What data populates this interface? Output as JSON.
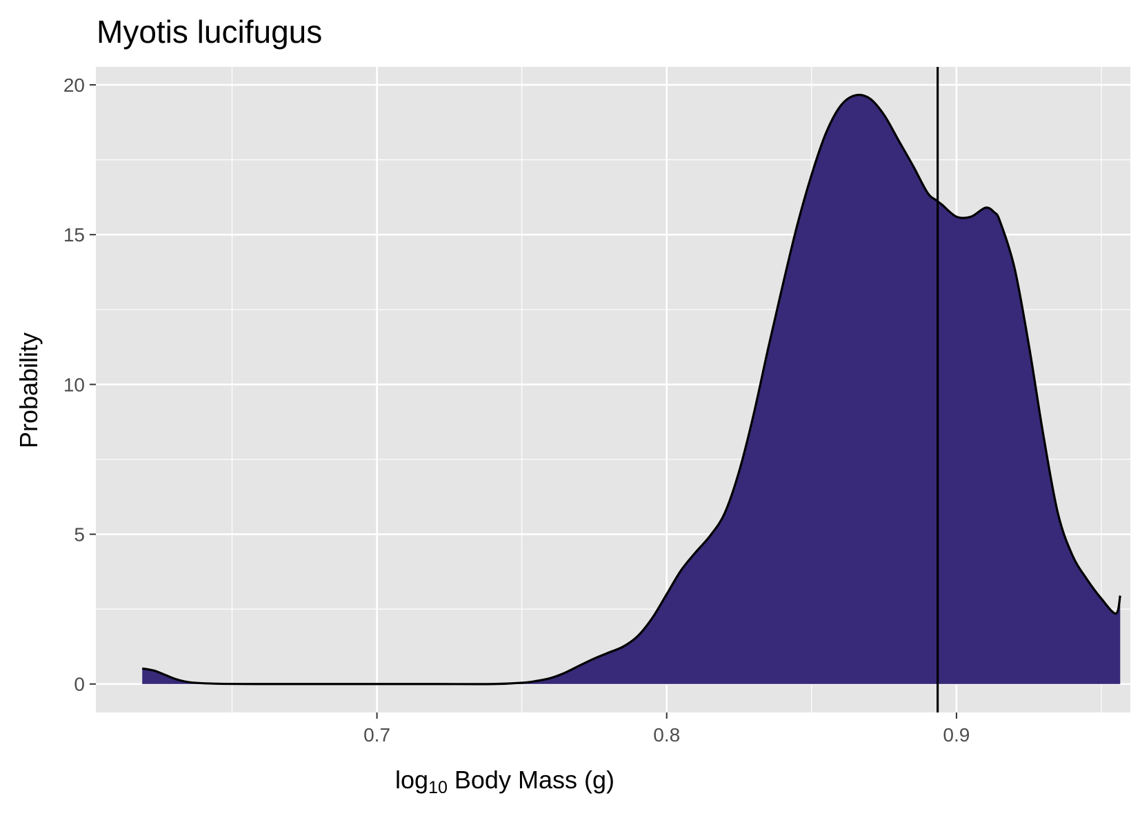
{
  "chart_data": {
    "type": "area",
    "title": "Myotis lucifugus",
    "xlabel_base": "log",
    "xlabel_sub": "10",
    "xlabel_rest": " Body Mass (g)",
    "ylabel": "Probability",
    "xlim": [
      0.603,
      0.96
    ],
    "ylim": [
      -0.95,
      20.6
    ],
    "x_ticks": [
      0.7,
      0.8,
      0.9
    ],
    "x_tick_labels": [
      "0.7",
      "0.8",
      "0.9"
    ],
    "y_ticks": [
      0,
      5,
      10,
      15,
      20
    ],
    "y_tick_labels": [
      "0",
      "5",
      "10",
      "15",
      "20"
    ],
    "grid": true,
    "fill_color": "#382a78",
    "line_color": "#000000",
    "panel_color": "#e5e5e5",
    "vline_x": 0.8935,
    "density": {
      "x": [
        0.619,
        0.623,
        0.627,
        0.631,
        0.636,
        0.645,
        0.66,
        0.68,
        0.7,
        0.72,
        0.74,
        0.75,
        0.755,
        0.76,
        0.765,
        0.77,
        0.775,
        0.78,
        0.785,
        0.79,
        0.795,
        0.8,
        0.805,
        0.81,
        0.815,
        0.82,
        0.825,
        0.83,
        0.835,
        0.84,
        0.845,
        0.85,
        0.855,
        0.86,
        0.865,
        0.87,
        0.875,
        0.88,
        0.885,
        0.89,
        0.893,
        0.895,
        0.9,
        0.905,
        0.91,
        0.913,
        0.915,
        0.92,
        0.925,
        0.93,
        0.935,
        0.94,
        0.945,
        0.95,
        0.955,
        0.9565
      ],
      "y": [
        0.52,
        0.45,
        0.3,
        0.15,
        0.05,
        0.01,
        0.0,
        0.0,
        0.0,
        0.0,
        0.0,
        0.04,
        0.1,
        0.2,
        0.38,
        0.62,
        0.85,
        1.05,
        1.25,
        1.6,
        2.2,
        3.0,
        3.8,
        4.4,
        4.95,
        5.7,
        7.1,
        9.0,
        11.2,
        13.3,
        15.3,
        17.0,
        18.4,
        19.3,
        19.65,
        19.55,
        19.0,
        18.15,
        17.3,
        16.4,
        16.15,
        16.0,
        15.6,
        15.6,
        15.9,
        15.75,
        15.45,
        13.9,
        11.3,
        8.3,
        5.7,
        4.3,
        3.5,
        2.85,
        2.35,
        2.95
      ]
    }
  }
}
